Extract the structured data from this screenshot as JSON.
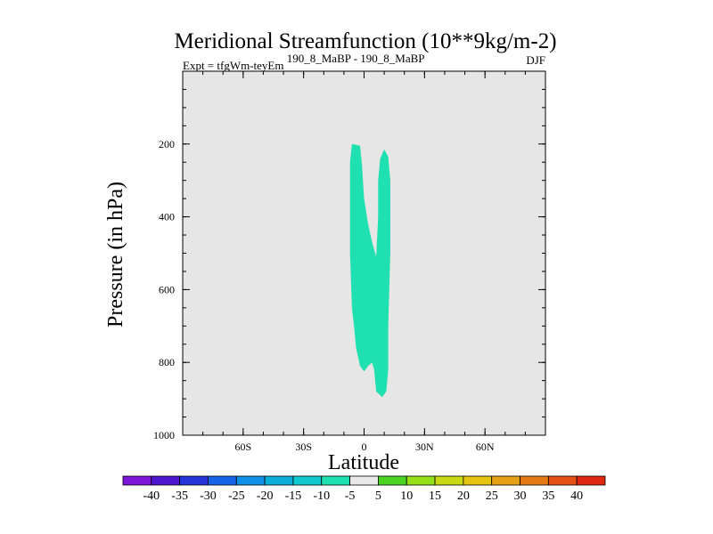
{
  "chart_data": {
    "type": "contour",
    "title": "Meridional Streamfunction (10**9kg/m-2)",
    "left_label_prefix": "Expt = tfgWm-teyEm",
    "left_label_sup": "190_8_MaBP - 190_8_MaBP",
    "right_label": "DJF",
    "xlabel": "Latitude",
    "ylabel": "Pressure (in hPa)",
    "xlim": [
      -90,
      90
    ],
    "ylim": [
      1000,
      0
    ],
    "x_ticks": [
      -60,
      -30,
      0,
      30,
      60
    ],
    "x_tick_labels": [
      "60S",
      "30S",
      "0",
      "30N",
      "60N"
    ],
    "y_ticks": [
      200,
      400,
      600,
      800,
      1000
    ],
    "y_tick_labels": [
      "200",
      "400",
      "600",
      "800",
      "1000"
    ],
    "background_color": "#e6e6e6",
    "filled_regions": [
      {
        "level_range": [
          -10,
          -5
        ],
        "color": "#1fe0b0",
        "outline": [
          [
            -6,
            200
          ],
          [
            -2,
            205
          ],
          [
            -1,
            260
          ],
          [
            0,
            350
          ],
          [
            2,
            420
          ],
          [
            4,
            470
          ],
          [
            6,
            510
          ],
          [
            7,
            400
          ],
          [
            7,
            300
          ],
          [
            8,
            240
          ],
          [
            10,
            215
          ],
          [
            12,
            235
          ],
          [
            13,
            300
          ],
          [
            13,
            500
          ],
          [
            12,
            700
          ],
          [
            12,
            820
          ],
          [
            11,
            880
          ],
          [
            9,
            895
          ],
          [
            6,
            880
          ],
          [
            5,
            820
          ],
          [
            4,
            800
          ],
          [
            2,
            810
          ],
          [
            0,
            825
          ],
          [
            -2,
            810
          ],
          [
            -4,
            760
          ],
          [
            -5,
            700
          ],
          [
            -6,
            650
          ],
          [
            -7,
            500
          ],
          [
            -7,
            350
          ],
          [
            -7,
            250
          ]
        ]
      }
    ],
    "colorbar": {
      "ticks": [
        -40,
        -35,
        -30,
        -25,
        -20,
        -15,
        -10,
        -5,
        5,
        10,
        15,
        20,
        25,
        30,
        35,
        40
      ],
      "colors": [
        "#7c17d8",
        "#4f16d0",
        "#2535d8",
        "#1864e6",
        "#0f90e8",
        "#0aaed8",
        "#12c8cf",
        "#1fe0b0",
        "#e8e8e8",
        "#4ad422",
        "#96e018",
        "#c8d812",
        "#e6c412",
        "#e6a016",
        "#e57a14",
        "#e45015",
        "#df2812"
      ]
    }
  }
}
